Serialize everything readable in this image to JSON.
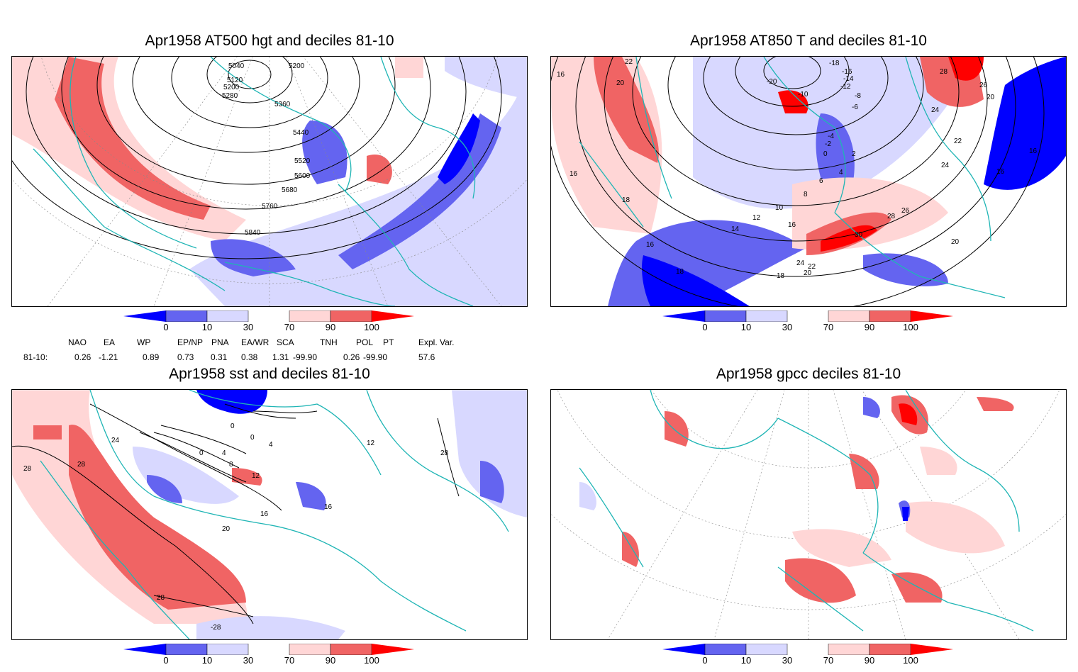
{
  "panels": [
    {
      "id": "p1",
      "title": "Apr1958 AT500 hgt and deciles 81-10",
      "contour_labels": [
        "5040",
        "5120",
        "5200",
        "5280",
        "5200",
        "5360",
        "5440",
        "5520",
        "5600",
        "5680",
        "5760",
        "5840"
      ]
    },
    {
      "id": "p2",
      "title": "Apr1958 AT850 T and deciles 81-10",
      "contour_labels": [
        "22",
        "20",
        "16",
        "-20",
        "-18",
        "-16",
        "-14",
        "-12",
        "-10",
        "-8",
        "-6",
        "-4",
        "-2",
        "0",
        "2",
        "4",
        "6",
        "8",
        "10",
        "12",
        "14",
        "16",
        "18",
        "20",
        "22",
        "24",
        "26",
        "28",
        "30",
        "16",
        "18",
        "16",
        "16",
        "18",
        "20",
        "22",
        "24",
        "28",
        "26",
        "24",
        "20",
        "16"
      ]
    },
    {
      "id": "p3",
      "title": "Apr1958 sst and deciles 81-10",
      "contour_labels": [
        "24",
        "28",
        "28",
        "0",
        "0",
        "0",
        "4",
        "4",
        "8",
        "12",
        "16",
        "16",
        "20",
        "28",
        "-28",
        "12",
        "28"
      ]
    },
    {
      "id": "p4",
      "title": "Apr1958 gpcc deciles 81-10",
      "contour_labels": []
    }
  ],
  "colorbar": {
    "ticks": [
      "0",
      "10",
      "30",
      "70",
      "90",
      "100"
    ],
    "colors": {
      "c0": "#0000ff",
      "c10": "#6464f0",
      "c30": "#d8d8ff",
      "c50": "#ffffff",
      "c70": "#ffd6d6",
      "c90": "#f06464",
      "c100": "#ff0000"
    }
  },
  "indices": {
    "headers": [
      "NAO",
      "EA",
      "WP",
      "EP/NP",
      "PNA",
      "EA/WR",
      "SCA",
      "TNH",
      "POL",
      "PT",
      "Expl. Var."
    ],
    "row_label": "81-10:",
    "values": [
      "0.26",
      "-1.21",
      "0.89",
      "0.73",
      "0.31",
      "0.38",
      "1.31",
      "-99.90",
      "0.26",
      "-99.90",
      "57.6"
    ]
  },
  "colors": {
    "coast": "#1fb5b5",
    "contour": "#000000",
    "grid": "#888888"
  }
}
